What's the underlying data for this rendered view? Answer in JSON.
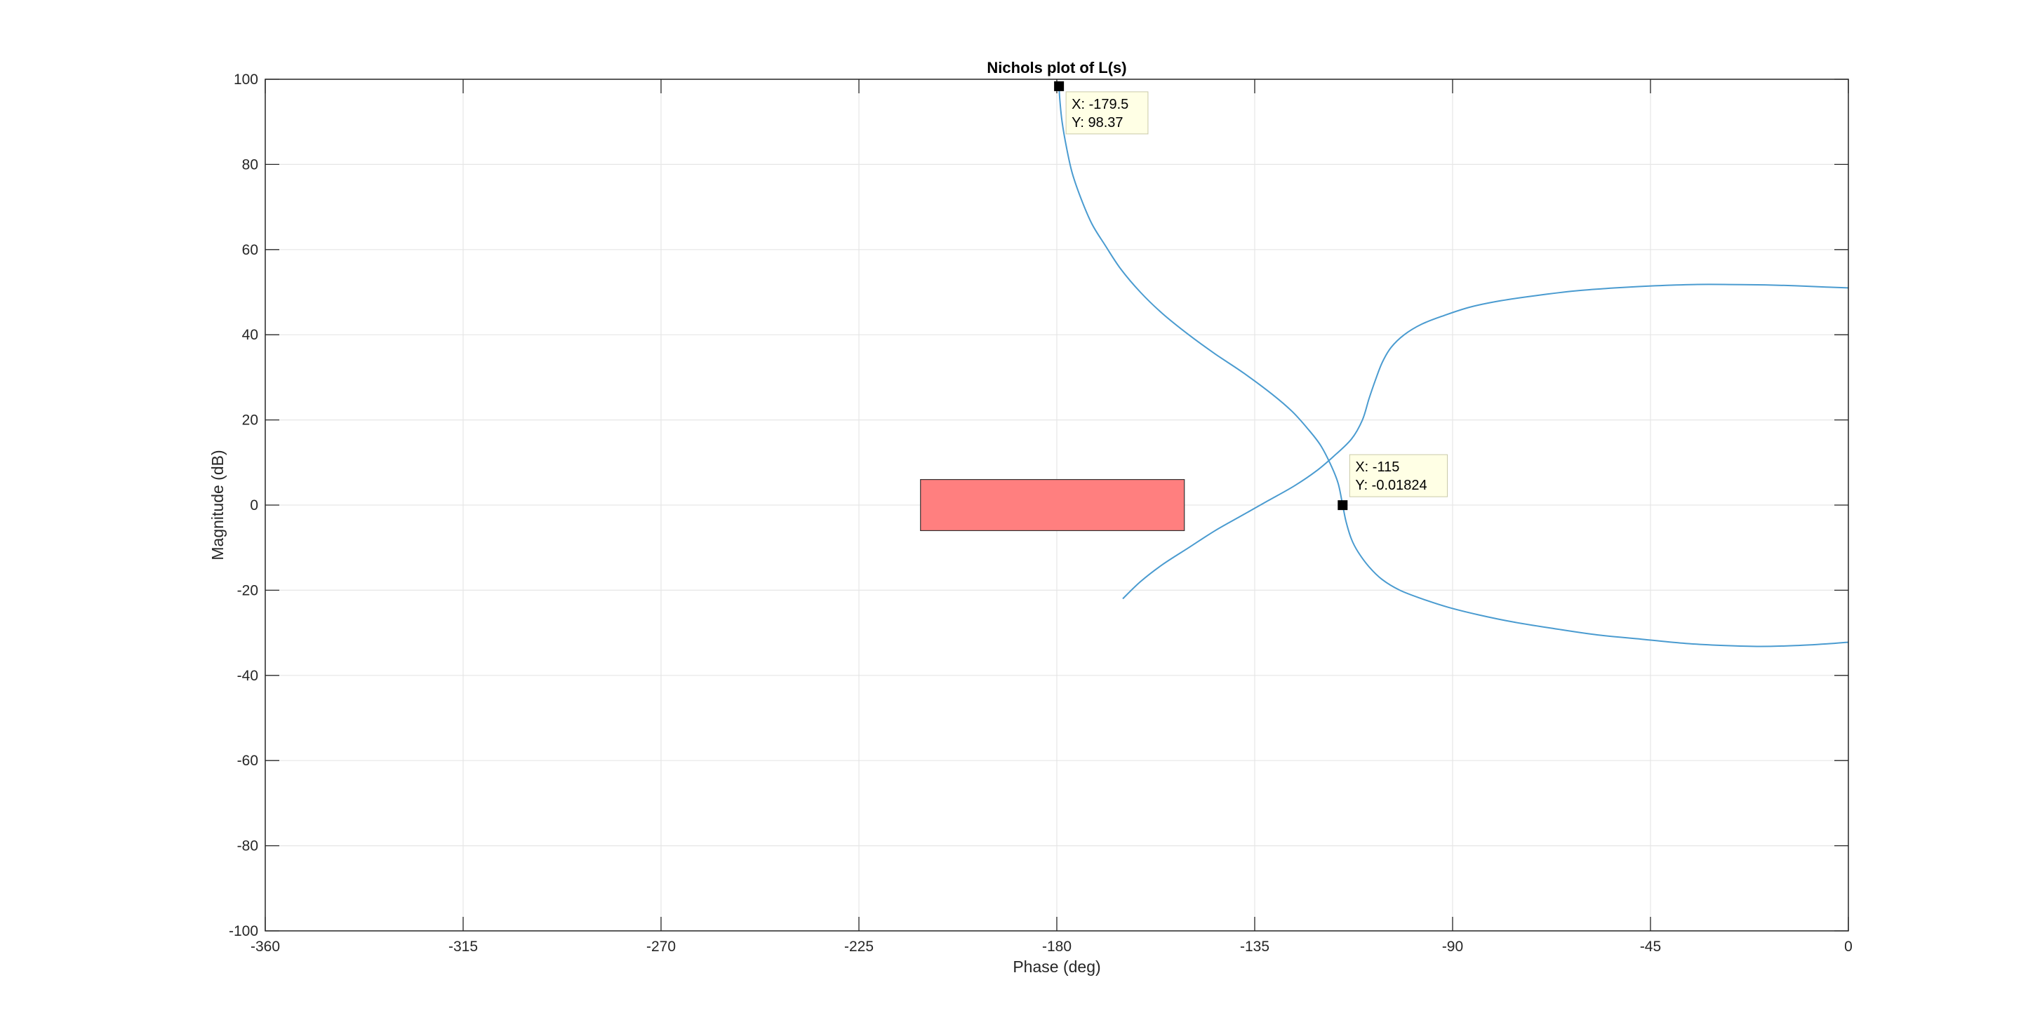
{
  "chart_data": {
    "type": "line",
    "title": "Nichols plot of L(s)",
    "xlabel": "Phase (deg)",
    "ylabel": "Magnitude (dB)",
    "xlim": [
      -360,
      0
    ],
    "ylim": [
      -100,
      100
    ],
    "xticks": [
      -360,
      -315,
      -270,
      -225,
      -180,
      -135,
      -90,
      -45,
      0
    ],
    "yticks": [
      -100,
      -80,
      -60,
      -40,
      -20,
      0,
      20,
      40,
      60,
      80,
      100
    ],
    "grid": true,
    "colors": {
      "line": "#4a9bd0",
      "rect_fill": "#ff7f7f",
      "datatip_bg": "#ffffe5"
    },
    "series": [
      {
        "x": [
          -179.5,
          -179.3,
          -178.8,
          -177.8,
          -176.5,
          -174.5,
          -172.0,
          -169.0,
          -165.5,
          -161.0,
          -156.0,
          -150.0,
          -144.0,
          -137.5,
          -131.0,
          -126.5,
          -123.0,
          -120.0,
          -117.5,
          -116.0,
          -115.0,
          -114.2,
          -113.0,
          -111.5,
          -109.0,
          -106.0,
          -102.0,
          -97.0,
          -91.0,
          -84.0,
          -76.0,
          -67.0,
          -57.0,
          -47.0,
          -37.0,
          -28.0,
          -20.0,
          -12.0,
          -5.0,
          0.0
        ],
        "y": [
          98.37,
          95.0,
          90.0,
          84.0,
          78.0,
          72.0,
          66.0,
          61.0,
          55.5,
          50.0,
          45.0,
          40.0,
          35.5,
          31.0,
          26.0,
          22.0,
          18.0,
          14.0,
          9.0,
          5.0,
          0.0,
          -4.0,
          -8.0,
          -11.0,
          -14.5,
          -17.5,
          -20.0,
          -22.0,
          -24.0,
          -25.8,
          -27.5,
          -29.0,
          -30.5,
          -31.5,
          -32.5,
          -33.0,
          -33.2,
          -33.0,
          -32.6,
          -32.2
        ]
      },
      {
        "x": [
          -165.0,
          -161.0,
          -156.0,
          -150.0,
          -144.0,
          -138.0,
          -132.0,
          -126.0,
          -121.0,
          -117.0,
          -113.0,
          -110.5,
          -109.0,
          -107.5,
          -106.0,
          -104.0,
          -101.0,
          -97.0,
          -92.0,
          -86.0,
          -79.0,
          -71.0,
          -62.0,
          -53.0,
          -44.0,
          -35.0,
          -27.0,
          -19.0,
          -12.0,
          -5.0,
          0.0
        ],
        "y": [
          -22.0,
          -18.0,
          -14.0,
          -10.0,
          -6.0,
          -2.5,
          1.0,
          4.5,
          8.0,
          11.5,
          15.5,
          20.0,
          25.0,
          29.5,
          33.5,
          37.0,
          40.0,
          42.5,
          44.5,
          46.5,
          48.0,
          49.2,
          50.3,
          51.0,
          51.5,
          51.8,
          51.8,
          51.7,
          51.5,
          51.2,
          51.0
        ]
      }
    ],
    "rectangle": {
      "x": [
        -211,
        -151
      ],
      "y": [
        -6,
        6
      ]
    },
    "datatips": [
      {
        "x": -179.5,
        "y": 98.37,
        "label_x": "X: -179.5",
        "label_y": "Y: 98.37"
      },
      {
        "x": -115,
        "y": -0.01824,
        "label_x": "X: -115",
        "label_y": "Y: -0.01824"
      }
    ]
  }
}
